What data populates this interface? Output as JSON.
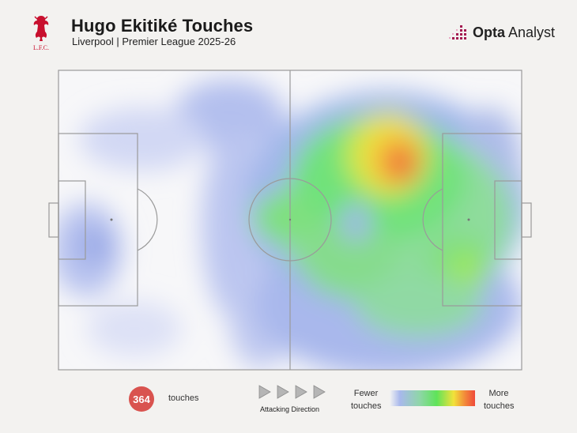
{
  "header": {
    "title": "Hugo Ekitiké Touches",
    "subtitle": "Liverpool | Premier League 2025-26"
  },
  "crest": {
    "text": "L.F.C.",
    "color": "#c8102e"
  },
  "brand": {
    "bold": "Opta",
    "rest": " Analyst",
    "accent": "#a3174f"
  },
  "footer": {
    "count": "364",
    "count_label": "touches",
    "direction_label": "Attacking Direction",
    "legend_low": "Fewer touches",
    "legend_high": "More touches"
  },
  "colors": {
    "background": "#f3f2f0",
    "badge": "#d9534f",
    "pitch_lines": "#9a9a9a"
  },
  "chart_data": {
    "type": "heatmap",
    "title": "Hugo Ekitiké Touches",
    "total_touches": 364,
    "attacking_direction": "left-to-right",
    "hot_zone": "right half, inside-left channel ahead of the penalty area",
    "intensity_scale": [
      "Fewer touches",
      "More touches"
    ]
  }
}
